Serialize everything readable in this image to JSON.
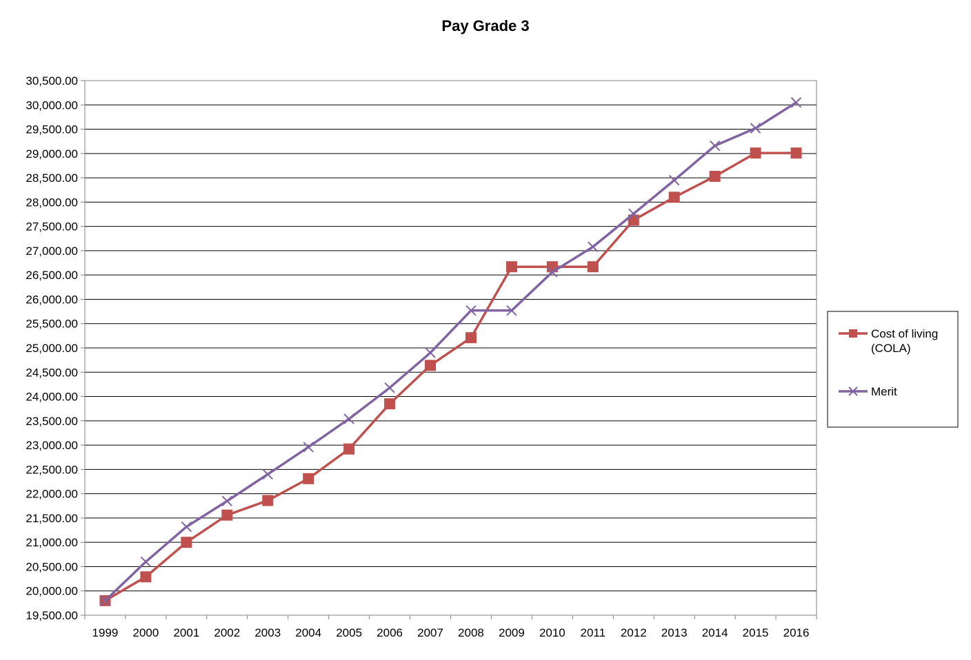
{
  "chart_data": {
    "type": "line",
    "title": "Pay Grade 3",
    "xlabel": "",
    "ylabel": "",
    "categories": [
      "1999",
      "2000",
      "2001",
      "2002",
      "2003",
      "2004",
      "2005",
      "2006",
      "2007",
      "2008",
      "2009",
      "2010",
      "2011",
      "2012",
      "2013",
      "2014",
      "2015",
      "2016"
    ],
    "ylim": [
      19500,
      30500
    ],
    "ytick_step": 500,
    "ytick_labels": [
      "19,500.00",
      "20,000.00",
      "20,500.00",
      "21,000.00",
      "21,500.00",
      "22,000.00",
      "22,500.00",
      "23,000.00",
      "23,500.00",
      "24,000.00",
      "24,500.00",
      "25,000.00",
      "25,500.00",
      "26,000.00",
      "26,500.00",
      "27,000.00",
      "27,500.00",
      "28,000.00",
      "28,500.00",
      "29,000.00",
      "29,500.00",
      "30,000.00",
      "30,500.00"
    ],
    "grid": true,
    "legend": "right",
    "series": [
      {
        "name": "Cost of living (COLA)",
        "name_lines": [
          "Cost of living",
          "(COLA)"
        ],
        "color": "#C0504D",
        "marker": "square",
        "values": [
          19800,
          20290,
          21000,
          21560,
          21860,
          22310,
          22920,
          23850,
          24640,
          25210,
          26670,
          26670,
          26670,
          27630,
          28100,
          28530,
          29010,
          29010
        ]
      },
      {
        "name": "Merit",
        "name_lines": [
          "Merit"
        ],
        "color": "#8064A2",
        "marker": "x",
        "values": [
          19800,
          20600,
          21320,
          21850,
          22400,
          22960,
          23540,
          24180,
          24900,
          25770,
          25770,
          26560,
          27080,
          27760,
          28450,
          29160,
          29520,
          30050
        ]
      }
    ]
  }
}
